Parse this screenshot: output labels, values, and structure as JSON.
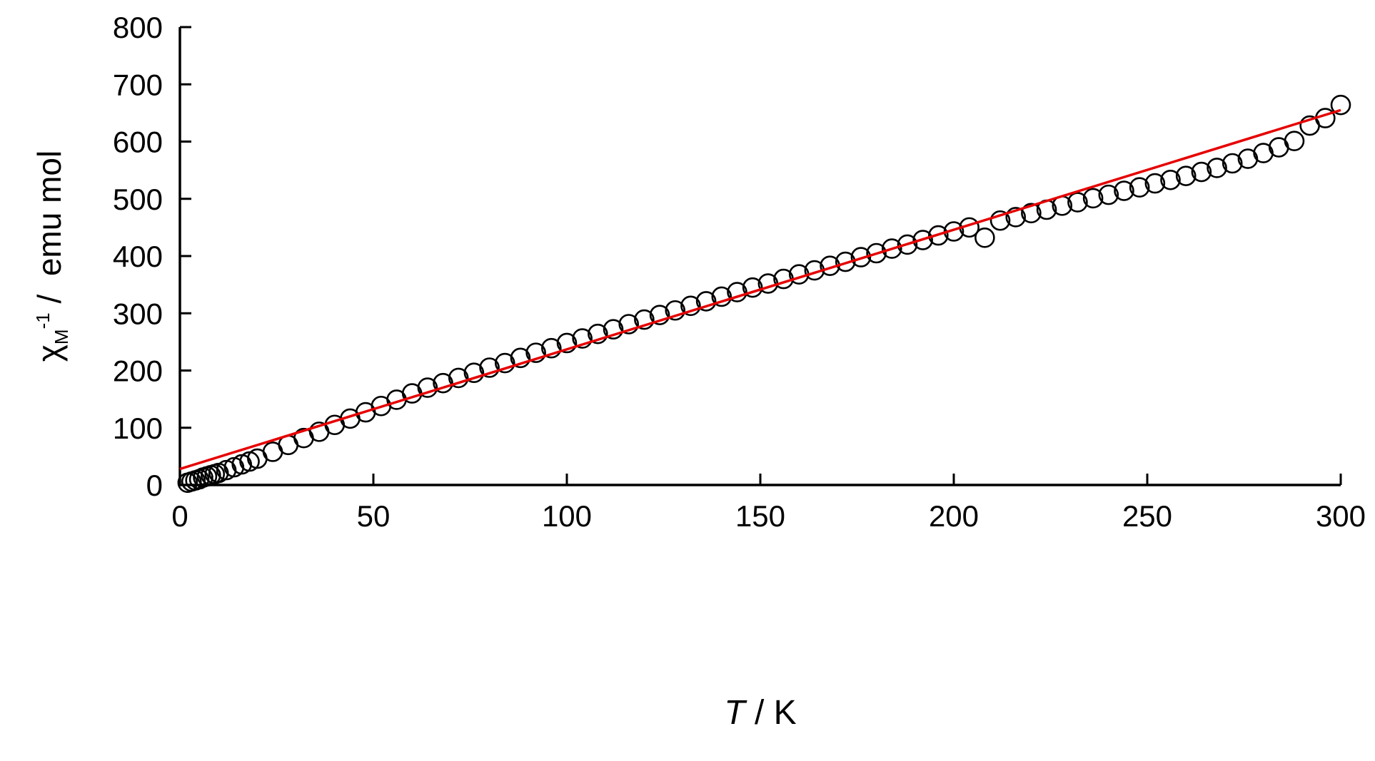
{
  "labels": {
    "y": {
      "chi": "χ",
      "sub": "M",
      "sup": "-1",
      "rest": " /  emu mol"
    },
    "x": {
      "variable": "T",
      "rest": " / K"
    }
  },
  "chart_data": {
    "type": "scatter",
    "title": "",
    "xlabel": "T / K",
    "ylabel": "χM⁻¹ / emu mol",
    "xlim": [
      0,
      300
    ],
    "ylim": [
      0,
      800
    ],
    "x_ticks": [
      0,
      50,
      100,
      150,
      200,
      250,
      300
    ],
    "y_ticks": [
      0,
      100,
      200,
      300,
      400,
      500,
      600,
      700,
      800
    ],
    "grid": false,
    "legend": false,
    "axis_color": "#000000",
    "series": [
      {
        "name": "points",
        "type": "scatter",
        "marker": "open-circle",
        "color": "#000000",
        "x": [
          2,
          3,
          4,
          5,
          6,
          7,
          8,
          9,
          10,
          12,
          14,
          16,
          18,
          20,
          24,
          28,
          32,
          36,
          40,
          44,
          48,
          52,
          56,
          60,
          64,
          68,
          72,
          76,
          80,
          84,
          88,
          92,
          96,
          100,
          104,
          108,
          112,
          116,
          120,
          124,
          128,
          132,
          136,
          140,
          144,
          148,
          152,
          156,
          160,
          164,
          168,
          172,
          176,
          180,
          184,
          188,
          192,
          196,
          200,
          204,
          208,
          212,
          216,
          220,
          224,
          228,
          232,
          236,
          240,
          244,
          248,
          252,
          256,
          260,
          264,
          268,
          272,
          276,
          280,
          284,
          288,
          292,
          296,
          300
        ],
        "y": [
          4,
          6,
          8,
          10,
          13,
          15,
          17,
          19,
          21,
          26,
          31,
          36,
          41,
          46,
          58,
          70,
          82,
          93,
          105,
          116,
          127,
          138,
          149,
          160,
          170,
          178,
          187,
          196,
          205,
          213,
          222,
          231,
          239,
          248,
          256,
          264,
          272,
          281,
          289,
          297,
          305,
          313,
          321,
          329,
          337,
          345,
          352,
          360,
          368,
          375,
          383,
          390,
          398,
          405,
          413,
          420,
          428,
          436,
          443,
          450,
          432,
          462,
          468,
          475,
          481,
          488,
          494,
          501,
          507,
          514,
          520,
          527,
          533,
          540,
          547,
          554,
          562,
          570,
          580,
          590,
          601,
          628,
          641,
          664
        ]
      },
      {
        "name": "fit-line",
        "type": "line",
        "color": "#e60000",
        "x": [
          0,
          300
        ],
        "y": [
          28,
          655
        ]
      }
    ]
  }
}
